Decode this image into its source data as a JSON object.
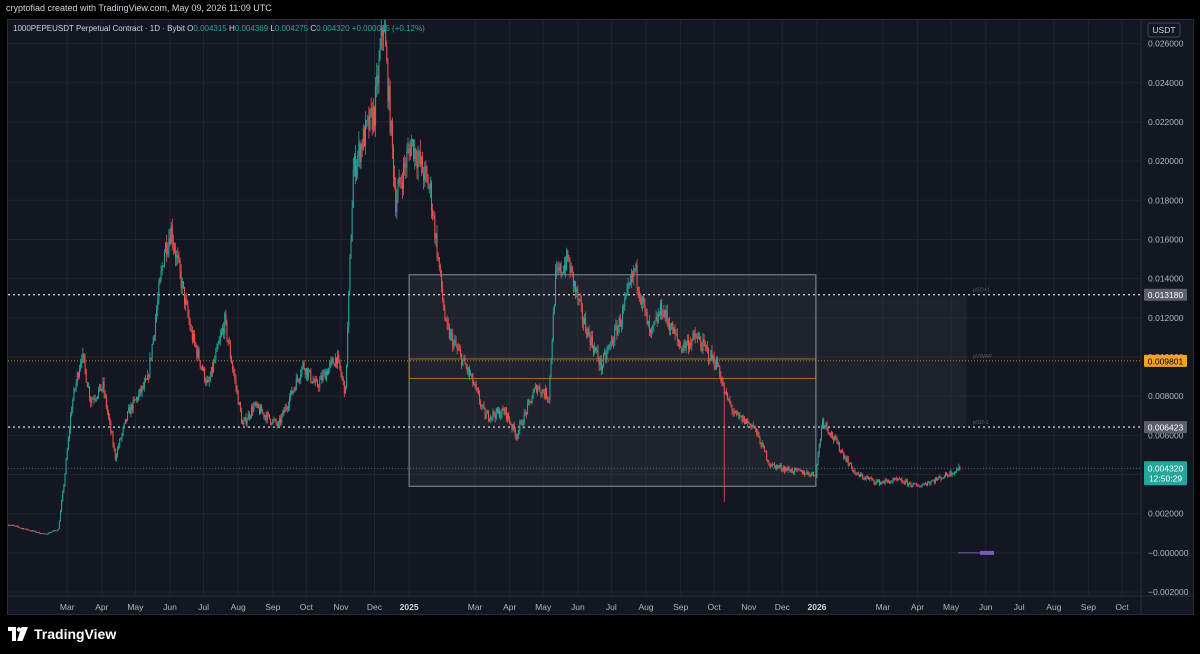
{
  "attribution": "cryptofiad created with TradingView.com, May 09, 2026 11:09 UTC",
  "legend": {
    "symbol": "1000PEPEUSDT Perpetual Contract · 1D · Bybit",
    "open_label": "O",
    "open": "0.004315",
    "high_label": "H",
    "high": "0.004369",
    "low_label": "L",
    "low": "0.004275",
    "close_label": "C",
    "close": "0.004320",
    "change": "+0.000005 (+0.12%)"
  },
  "currency": "USDT",
  "brand": "TradingView",
  "colors": {
    "background": "#131722",
    "up": "#26a69a",
    "down": "#ef5350",
    "grid": "#1f2433",
    "axis_text": "#b2b5be",
    "vwap": "#f7a21b",
    "level": "#c5c8d0",
    "box": "#787b86",
    "last_price": "#26a69a"
  },
  "chart_data": {
    "type": "candlestick",
    "title": "1000PEPEUSDT Perpetual Contract · 1D · Bybit",
    "y_ticks": [
      "0.026000",
      "0.024000",
      "0.022000",
      "0.020000",
      "0.018000",
      "0.016000",
      "0.014000",
      "0.012000",
      "0.010000",
      "0.008000",
      "0.006000",
      "0.004000",
      "0.002000",
      "−0.000000",
      "−0.002000"
    ],
    "y_tick_values": [
      0.026,
      0.024,
      0.022,
      0.02,
      0.018,
      0.016,
      0.014,
      0.012,
      0.01,
      0.008,
      0.006,
      0.004,
      0.002,
      0,
      -0.002
    ],
    "ylim": [
      -0.0022,
      0.027
    ],
    "x_ticks": [
      "Mar",
      "Apr",
      "May",
      "Jun",
      "Jul",
      "Aug",
      "Sep",
      "Oct",
      "Nov",
      "Dec",
      "2025",
      "Mar",
      "Apr",
      "May",
      "Jun",
      "Jul",
      "Aug",
      "Sep",
      "Oct",
      "Nov",
      "Dec",
      "2026",
      "Mar",
      "Apr",
      "May",
      "Jun",
      "Jul",
      "Aug",
      "Sep",
      "Oct"
    ],
    "x_tick_dates": [
      "2024-03-01",
      "2024-04-01",
      "2024-05-01",
      "2024-06-01",
      "2024-07-01",
      "2024-08-01",
      "2024-09-01",
      "2024-10-01",
      "2024-11-01",
      "2024-12-01",
      "2025-01-01",
      "2025-03-01",
      "2025-04-01",
      "2025-05-01",
      "2025-06-01",
      "2025-07-01",
      "2025-08-01",
      "2025-09-01",
      "2025-10-01",
      "2025-11-01",
      "2025-12-01",
      "2026-01-01",
      "2026-03-01",
      "2026-04-01",
      "2026-05-01",
      "2026-06-01",
      "2026-07-01",
      "2026-08-01",
      "2026-09-01",
      "2026-10-01"
    ],
    "bold_x_ticks": [
      "2025",
      "2026"
    ],
    "x_range": [
      "2024-01-08",
      "2026-10-18"
    ],
    "series_start": "2024-01-08",
    "series_end": "2026-05-09",
    "key_prices": [
      [
        "2024-01-08",
        0.00145
      ],
      [
        "2024-02-10",
        0.00095
      ],
      [
        "2024-02-22",
        0.0012
      ],
      [
        "2024-02-27",
        0.0035
      ],
      [
        "2024-03-05",
        0.0075
      ],
      [
        "2024-03-14",
        0.0102
      ],
      [
        "2024-03-22",
        0.0078
      ],
      [
        "2024-04-02",
        0.0085
      ],
      [
        "2024-04-13",
        0.0049
      ],
      [
        "2024-04-25",
        0.0072
      ],
      [
        "2024-05-12",
        0.0088
      ],
      [
        "2024-05-27",
        0.0155
      ],
      [
        "2024-06-02",
        0.0165
      ],
      [
        "2024-06-20",
        0.0112
      ],
      [
        "2024-07-05",
        0.0085
      ],
      [
        "2024-07-20",
        0.0118
      ],
      [
        "2024-08-05",
        0.0065
      ],
      [
        "2024-08-15",
        0.0075
      ],
      [
        "2024-09-06",
        0.0065
      ],
      [
        "2024-09-28",
        0.0096
      ],
      [
        "2024-10-10",
        0.0085
      ],
      [
        "2024-10-28",
        0.01
      ],
      [
        "2024-11-05",
        0.0082
      ],
      [
        "2024-11-12",
        0.0195
      ],
      [
        "2024-11-20",
        0.021
      ],
      [
        "2024-12-01",
        0.0225
      ],
      [
        "2024-12-09",
        0.0272
      ],
      [
        "2024-12-20",
        0.018
      ],
      [
        "2025-01-03",
        0.021
      ],
      [
        "2025-01-20",
        0.0185
      ],
      [
        "2025-02-03",
        0.0115
      ],
      [
        "2025-02-25",
        0.009
      ],
      [
        "2025-03-10",
        0.007
      ],
      [
        "2025-03-28",
        0.0072
      ],
      [
        "2025-04-07",
        0.006
      ],
      [
        "2025-04-25",
        0.0085
      ],
      [
        "2025-05-06",
        0.008
      ],
      [
        "2025-05-12",
        0.014
      ],
      [
        "2025-05-23",
        0.015
      ],
      [
        "2025-06-05",
        0.012
      ],
      [
        "2025-06-22",
        0.0095
      ],
      [
        "2025-07-10",
        0.012
      ],
      [
        "2025-07-22",
        0.0145
      ],
      [
        "2025-08-05",
        0.011
      ],
      [
        "2025-08-15",
        0.0125
      ],
      [
        "2025-09-01",
        0.0105
      ],
      [
        "2025-09-15",
        0.011
      ],
      [
        "2025-10-05",
        0.0095
      ],
      [
        "2025-10-10",
        0.0082
      ],
      [
        "2025-10-20",
        0.007
      ],
      [
        "2025-11-05",
        0.0065
      ],
      [
        "2025-11-20",
        0.0045
      ],
      [
        "2025-12-10",
        0.0042
      ],
      [
        "2025-12-31",
        0.004
      ],
      [
        "2026-01-03",
        0.0055
      ],
      [
        "2026-01-06",
        0.0068
      ],
      [
        "2026-01-25",
        0.005
      ],
      [
        "2026-02-05",
        0.004
      ],
      [
        "2026-02-25",
        0.0036
      ],
      [
        "2026-03-15",
        0.0037
      ],
      [
        "2026-04-01",
        0.0034
      ],
      [
        "2026-04-20",
        0.0038
      ],
      [
        "2026-05-09",
        0.00432
      ]
    ],
    "dotted_levels": [
      {
        "price": 0.01318,
        "label": "0.013180",
        "color": "#c5c8d0",
        "tag_bg": "#5d606b",
        "name": "pSD+1"
      },
      {
        "price": 0.009801,
        "label": "0.009801",
        "color": "#f7a21b",
        "tag_bg": "#f7a21b",
        "name": "pVWAP"
      },
      {
        "price": 0.006423,
        "label": "0.006423",
        "color": "#c5c8d0",
        "tag_bg": "#5d606b",
        "name": "pSD-1"
      }
    ],
    "last_price": {
      "price": 0.00432,
      "label": "0.004320",
      "countdown": "12:50:29"
    },
    "range_box": {
      "from": "2025-01-01",
      "to": "2025-12-31",
      "high": 0.0142,
      "low": 0.0034,
      "inner_high": 0.0099,
      "inner_low": 0.0089
    },
    "vwap_zone": {
      "from": "2025-12-31",
      "to": "2026-05-15",
      "high": 0.0131,
      "low": 0.0064
    },
    "anomalous_wick": {
      "date": "2025-10-10",
      "low": 0.0026
    }
  }
}
